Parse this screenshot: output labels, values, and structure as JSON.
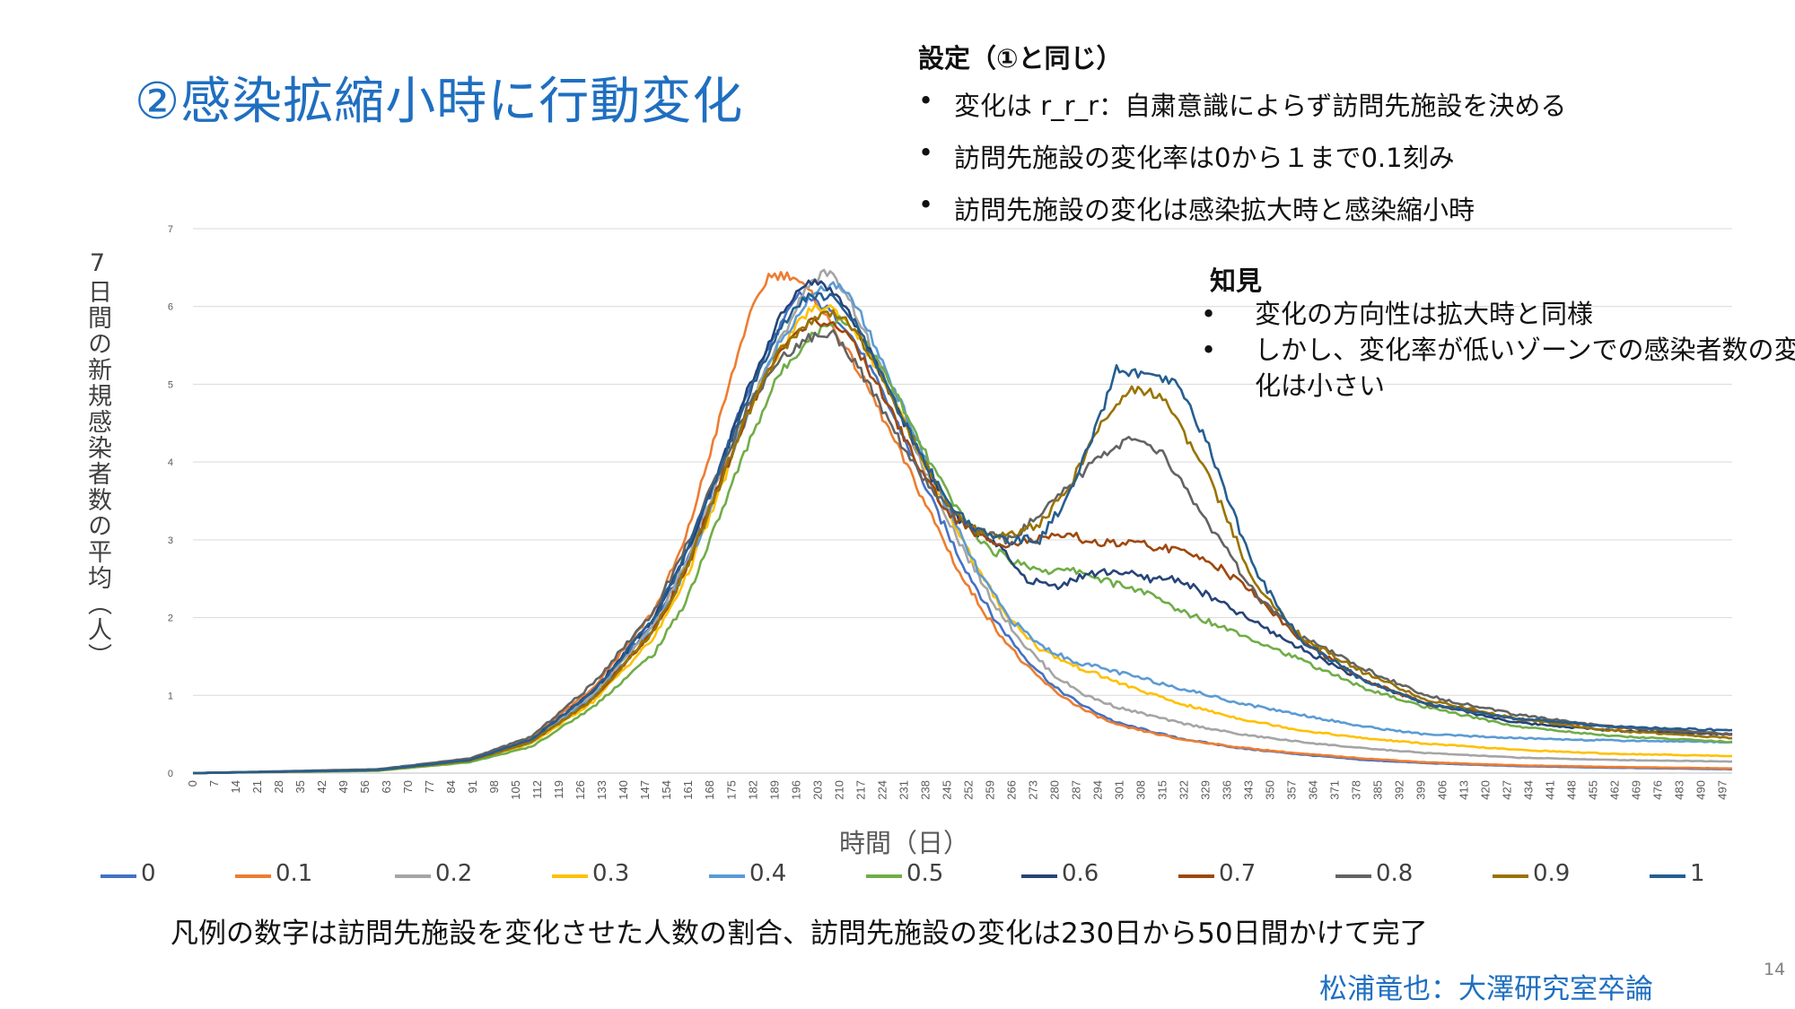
{
  "slide": {
    "title": "②感染拡縮小時に行動変化",
    "settings_heading": "設定（①と同じ）",
    "settings_items": [
      "変化は r_r_r：自粛意識によらず訪問先施設を決める",
      "訪問先施設の変化率は0から１まで0.1刻み",
      "訪問先施設の変化は感染拡大時と感染縮小時"
    ],
    "findings_heading": "知見",
    "findings_items": [
      "変化の方向性は拡大時と同様",
      "しかし、変化率が低いゾーンでの感染者数の変化は小さい"
    ],
    "footnote": "凡例の数字は訪問先施設を変化させた人数の割合、訪問先施設の変化は230日から50日間かけて完了",
    "author": "松浦竜也：大澤研究室卒論",
    "page_number": "14"
  },
  "chart_data": {
    "type": "line",
    "title": "",
    "xlabel": "時間（日）",
    "ylabel": "7日間の新規感染者数の平均（人）",
    "xlim": [
      0,
      500
    ],
    "ylim": [
      0,
      7
    ],
    "y_ticks": [
      "0",
      "1",
      "2",
      "3",
      "4",
      "5",
      "6",
      "7"
    ],
    "x_ticks": [
      "0",
      "7",
      "14",
      "21",
      "28",
      "35",
      "42",
      "49",
      "56",
      "63",
      "70",
      "77",
      "84",
      "91",
      "98",
      "105",
      "112",
      "119",
      "126",
      "133",
      "140",
      "147",
      "154",
      "161",
      "168",
      "175",
      "182",
      "189",
      "196",
      "203",
      "210",
      "217",
      "224",
      "231",
      "238",
      "245",
      "252",
      "259",
      "266",
      "273",
      "280",
      "287",
      "294",
      "301",
      "308",
      "315",
      "322",
      "329",
      "336",
      "343",
      "350",
      "357",
      "364",
      "371",
      "378",
      "385",
      "392",
      "399",
      "406",
      "413",
      "420",
      "427",
      "434",
      "441",
      "448",
      "455",
      "462",
      "469",
      "476",
      "483",
      "490",
      "497"
    ],
    "grid": true,
    "legend_position": "bottom",
    "series": [
      {
        "name": "0",
        "color": "#4472c4",
        "x": [
          0,
          60,
          90,
          110,
          130,
          150,
          160,
          170,
          180,
          190,
          197,
          205,
          212,
          220,
          230,
          240,
          250,
          260,
          270,
          280,
          290,
          300,
          320,
          340,
          360,
          380,
          400,
          430,
          460,
          500
        ],
        "y": [
          0,
          0.04,
          0.17,
          0.42,
          1.05,
          1.95,
          2.7,
          3.8,
          4.9,
          5.7,
          6.15,
          6.0,
          5.75,
          5.2,
          4.4,
          3.5,
          2.7,
          2.0,
          1.5,
          1.1,
          0.85,
          0.65,
          0.45,
          0.32,
          0.24,
          0.17,
          0.13,
          0.09,
          0.07,
          0.05
        ]
      },
      {
        "name": "0.1",
        "color": "#ed7d31",
        "x": [
          0,
          60,
          90,
          110,
          130,
          150,
          160,
          170,
          180,
          187,
          195,
          202,
          210,
          220,
          230,
          240,
          250,
          260,
          270,
          280,
          290,
          300,
          320,
          340,
          360,
          380,
          400,
          430,
          460,
          500
        ],
        "y": [
          0,
          0.04,
          0.18,
          0.45,
          1.1,
          2.1,
          3.0,
          4.4,
          5.8,
          6.4,
          6.4,
          6.1,
          5.6,
          4.9,
          4.1,
          3.3,
          2.5,
          1.9,
          1.4,
          1.05,
          0.8,
          0.62,
          0.44,
          0.33,
          0.25,
          0.19,
          0.14,
          0.1,
          0.08,
          0.06
        ]
      },
      {
        "name": "0.2",
        "color": "#a5a5a5",
        "x": [
          0,
          60,
          90,
          110,
          130,
          150,
          160,
          170,
          180,
          190,
          200,
          206,
          212,
          220,
          230,
          240,
          250,
          260,
          270,
          280,
          290,
          300,
          320,
          340,
          360,
          380,
          400,
          430,
          460,
          500
        ],
        "y": [
          0,
          0.04,
          0.17,
          0.42,
          1.0,
          1.9,
          2.7,
          3.7,
          4.7,
          5.5,
          6.3,
          6.45,
          6.2,
          5.5,
          4.6,
          3.7,
          2.9,
          2.2,
          1.65,
          1.25,
          1.0,
          0.85,
          0.65,
          0.5,
          0.4,
          0.32,
          0.26,
          0.2,
          0.17,
          0.15
        ]
      },
      {
        "name": "0.3",
        "color": "#ffc000",
        "x": [
          0,
          60,
          90,
          110,
          130,
          150,
          160,
          170,
          180,
          190,
          200,
          207,
          215,
          225,
          235,
          245,
          255,
          265,
          275,
          285,
          295,
          305,
          320,
          340,
          360,
          380,
          400,
          430,
          460,
          500
        ],
        "y": [
          0,
          0.04,
          0.16,
          0.38,
          0.92,
          1.75,
          2.5,
          3.5,
          4.6,
          5.4,
          5.95,
          6.0,
          5.7,
          5.0,
          4.2,
          3.4,
          2.6,
          2.0,
          1.6,
          1.4,
          1.25,
          1.1,
          0.9,
          0.7,
          0.55,
          0.45,
          0.38,
          0.3,
          0.25,
          0.22
        ]
      },
      {
        "name": "0.4",
        "color": "#5b9bd5",
        "x": [
          0,
          60,
          90,
          110,
          130,
          150,
          160,
          170,
          180,
          190,
          200,
          208,
          215,
          225,
          235,
          245,
          255,
          265,
          275,
          285,
          295,
          305,
          320,
          340,
          360,
          380,
          400,
          430,
          460,
          500
        ],
        "y": [
          0,
          0.04,
          0.16,
          0.4,
          0.98,
          1.85,
          2.6,
          3.6,
          4.6,
          5.5,
          6.1,
          6.3,
          6.05,
          5.2,
          4.3,
          3.4,
          2.6,
          2.0,
          1.65,
          1.45,
          1.35,
          1.25,
          1.1,
          0.9,
          0.75,
          0.6,
          0.5,
          0.45,
          0.42,
          0.4
        ]
      },
      {
        "name": "0.5",
        "color": "#70ad47",
        "x": [
          0,
          60,
          90,
          110,
          130,
          150,
          160,
          170,
          180,
          190,
          200,
          210,
          218,
          228,
          238,
          248,
          258,
          268,
          278,
          288,
          298,
          308,
          320,
          340,
          360,
          380,
          400,
          430,
          460,
          500
        ],
        "y": [
          0,
          0.03,
          0.14,
          0.34,
          0.85,
          1.55,
          2.2,
          3.2,
          4.2,
          5.1,
          5.6,
          5.85,
          5.6,
          4.9,
          4.1,
          3.4,
          2.9,
          2.7,
          2.6,
          2.6,
          2.45,
          2.35,
          2.1,
          1.8,
          1.45,
          1.1,
          0.85,
          0.6,
          0.48,
          0.4
        ]
      },
      {
        "name": "0.6",
        "color": "#264478",
        "x": [
          0,
          60,
          90,
          110,
          130,
          150,
          160,
          170,
          180,
          190,
          198,
          205,
          212,
          220,
          230,
          240,
          250,
          260,
          270,
          280,
          290,
          300,
          310,
          320,
          340,
          360,
          380,
          400,
          430,
          460,
          500
        ],
        "y": [
          0,
          0.04,
          0.17,
          0.43,
          1.05,
          2.0,
          2.8,
          3.8,
          4.9,
          5.8,
          6.3,
          6.3,
          6.0,
          5.4,
          4.6,
          3.8,
          3.2,
          3.0,
          2.5,
          2.4,
          2.55,
          2.6,
          2.5,
          2.5,
          2.05,
          1.6,
          1.2,
          0.9,
          0.65,
          0.55,
          0.5
        ]
      },
      {
        "name": "0.7",
        "color": "#9e480e",
        "x": [
          0,
          60,
          90,
          110,
          130,
          150,
          160,
          170,
          180,
          190,
          200,
          208,
          215,
          225,
          235,
          245,
          255,
          265,
          275,
          285,
          295,
          305,
          315,
          330,
          345,
          360,
          380,
          400,
          430,
          460,
          500
        ],
        "y": [
          0,
          0.04,
          0.16,
          0.4,
          0.95,
          1.85,
          2.6,
          3.6,
          4.6,
          5.4,
          5.8,
          5.8,
          5.5,
          4.8,
          4.0,
          3.35,
          3.05,
          2.95,
          3.0,
          3.05,
          2.95,
          2.95,
          2.9,
          2.75,
          2.3,
          1.7,
          1.2,
          0.9,
          0.7,
          0.6,
          0.5
        ]
      },
      {
        "name": "0.8",
        "color": "#636363",
        "x": [
          0,
          60,
          90,
          110,
          130,
          150,
          160,
          170,
          180,
          190,
          200,
          208,
          215,
          225,
          235,
          245,
          255,
          265,
          275,
          285,
          295,
          305,
          315,
          330,
          345,
          360,
          380,
          400,
          430,
          460,
          500
        ],
        "y": [
          0,
          0.05,
          0.19,
          0.47,
          1.15,
          2.1,
          2.9,
          3.8,
          4.7,
          5.3,
          5.6,
          5.65,
          5.3,
          4.6,
          3.9,
          3.4,
          3.1,
          3.0,
          3.3,
          3.7,
          4.1,
          4.3,
          4.1,
          3.2,
          2.3,
          1.75,
          1.35,
          1.0,
          0.75,
          0.6,
          0.5
        ]
      },
      {
        "name": "0.9",
        "color": "#997300",
        "x": [
          0,
          60,
          90,
          110,
          130,
          150,
          160,
          170,
          180,
          190,
          200,
          208,
          215,
          225,
          235,
          245,
          255,
          265,
          275,
          285,
          295,
          305,
          315,
          330,
          345,
          360,
          380,
          400,
          430,
          460,
          500
        ],
        "y": [
          0,
          0.04,
          0.16,
          0.4,
          0.95,
          1.85,
          2.6,
          3.6,
          4.6,
          5.4,
          5.8,
          5.95,
          5.7,
          5.0,
          4.2,
          3.45,
          3.1,
          3.05,
          3.2,
          3.7,
          4.5,
          4.95,
          4.85,
          3.8,
          2.45,
          1.75,
          1.3,
          0.95,
          0.7,
          0.55,
          0.45
        ]
      },
      {
        "name": "1",
        "color": "#255e91",
        "x": [
          0,
          60,
          90,
          110,
          130,
          150,
          160,
          170,
          180,
          190,
          200,
          208,
          215,
          225,
          235,
          245,
          255,
          265,
          275,
          285,
          295,
          300,
          310,
          320,
          330,
          345,
          360,
          380,
          400,
          430,
          460,
          500
        ],
        "y": [
          0,
          0.04,
          0.17,
          0.43,
          1.05,
          2.0,
          2.8,
          3.8,
          4.8,
          5.7,
          6.15,
          6.1,
          5.8,
          5.0,
          4.2,
          3.5,
          3.1,
          3.0,
          3.0,
          3.6,
          4.6,
          5.2,
          5.1,
          5.0,
          4.2,
          2.6,
          1.7,
          1.2,
          0.9,
          0.7,
          0.6,
          0.55
        ]
      }
    ]
  }
}
